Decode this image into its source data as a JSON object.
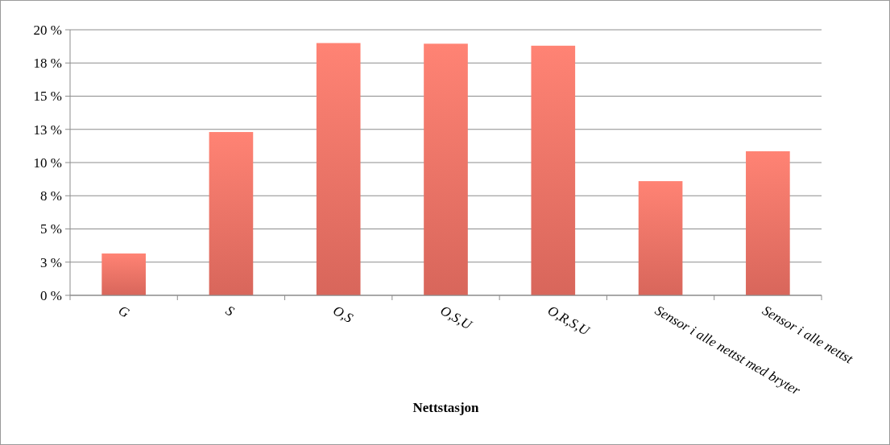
{
  "chart_data": {
    "type": "bar",
    "xlabel": "Nettstasjon",
    "categories": [
      "G",
      "S",
      "O,S",
      "O,S,U",
      "O,R,S,U",
      "Sensor i alle nettst med bryter",
      "Sensor i alle nettst"
    ],
    "values": [
      3.15,
      12.3,
      19.0,
      18.95,
      18.8,
      8.6,
      10.85
    ],
    "color": "#e06a5e",
    "ylim": [
      0,
      20
    ],
    "yticks": [
      {
        "value": 0,
        "label": "0 %"
      },
      {
        "value": 2.5,
        "label": "3 %"
      },
      {
        "value": 5,
        "label": "5 %"
      },
      {
        "value": 7.5,
        "label": "8 %"
      },
      {
        "value": 10,
        "label": "10 %"
      },
      {
        "value": 12.5,
        "label": "13 %"
      },
      {
        "value": 15,
        "label": "15 %"
      },
      {
        "value": 17.5,
        "label": "18 %"
      },
      {
        "value": 20,
        "label": "20 %"
      }
    ],
    "grid": "y"
  }
}
